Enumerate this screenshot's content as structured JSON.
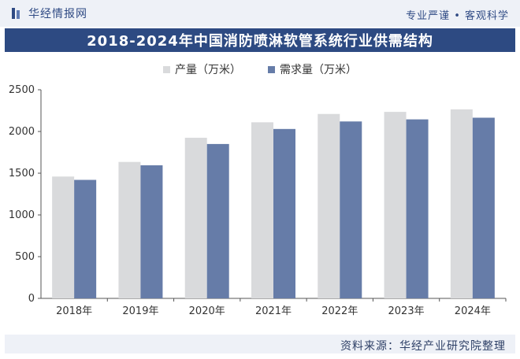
{
  "header": {
    "brand_name": "华经情报网",
    "slogan": "专业严谨 • 客观科学"
  },
  "footer": {
    "source": "资料来源：华经产业研究院整理"
  },
  "colors": {
    "production": "#d9dadc",
    "demand": "#667ca8",
    "title_bg": "#2d4a82"
  },
  "chart_data": {
    "type": "bar",
    "title": "2018-2024年中国消防喷淋软管系统行业供需结构",
    "xlabel": "",
    "ylabel": "",
    "categories": [
      "2018年",
      "2019年",
      "2020年",
      "2021年",
      "2022年",
      "2023年",
      "2024年"
    ],
    "series": [
      {
        "name": "产量（万米）",
        "values": [
          1460,
          1635,
          1925,
          2110,
          2210,
          2235,
          2265
        ]
      },
      {
        "name": "需求量（万米）",
        "values": [
          1420,
          1595,
          1850,
          2030,
          2120,
          2145,
          2165
        ]
      }
    ],
    "ylim": [
      0,
      2500
    ],
    "yticks": [
      "0",
      "500",
      "1000",
      "1500",
      "2000",
      "2500"
    ],
    "grid": false,
    "legend_position": "top-center"
  }
}
